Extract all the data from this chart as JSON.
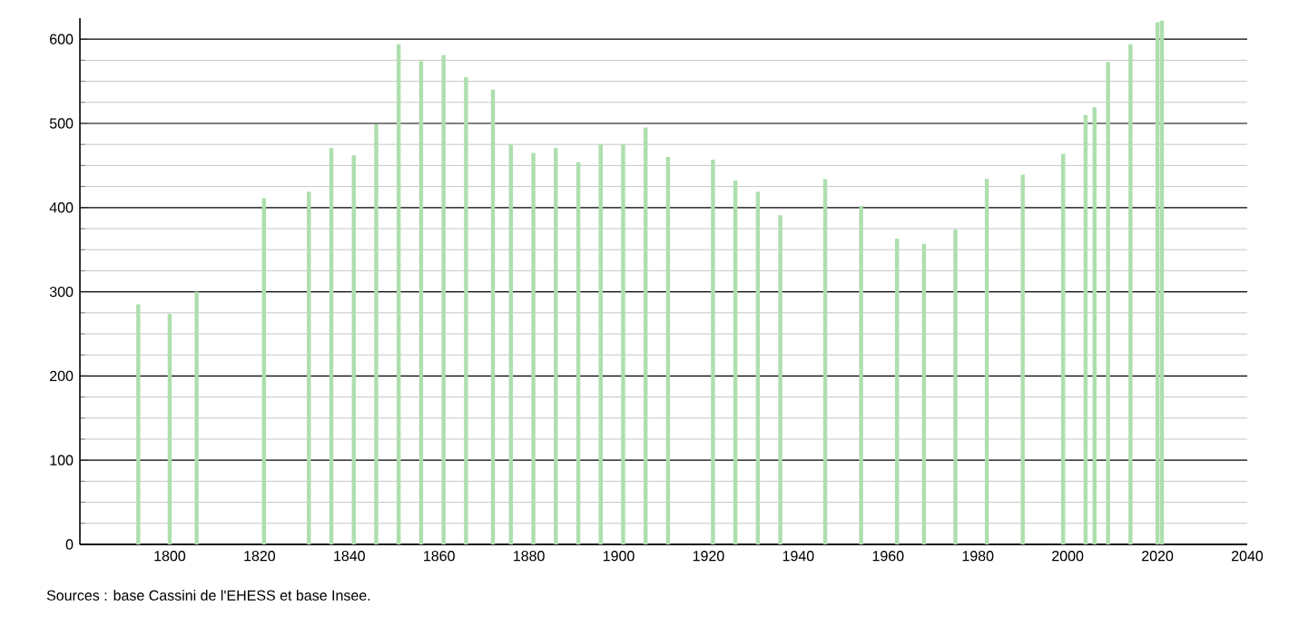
{
  "chart_data": {
    "type": "bar",
    "color": "#addfad",
    "x": [
      1793,
      1800,
      1806,
      1821,
      1831,
      1836,
      1841,
      1846,
      1851,
      1856,
      1861,
      1866,
      1872,
      1876,
      1881,
      1886,
      1891,
      1896,
      1901,
      1906,
      1911,
      1921,
      1926,
      1931,
      1936,
      1946,
      1954,
      1962,
      1968,
      1975,
      1982,
      1990,
      1999,
      2004,
      2006,
      2009,
      2014,
      2020,
      2021
    ],
    "values": [
      285,
      274,
      300,
      411,
      419,
      471,
      462,
      499,
      594,
      574,
      581,
      555,
      540,
      475,
      465,
      471,
      454,
      475,
      475,
      495,
      460,
      457,
      432,
      419,
      391,
      434,
      402,
      363,
      357,
      374,
      434,
      439,
      464,
      510,
      519,
      573,
      594,
      620,
      622
    ],
    "xlim": [
      1780,
      2040
    ],
    "xticks": [
      1800,
      1820,
      1840,
      1860,
      1880,
      1900,
      1920,
      1940,
      1960,
      1980,
      2000,
      2020,
      2040
    ],
    "ylim": [
      0,
      625
    ],
    "yticks": [
      0,
      100,
      200,
      300,
      400,
      500,
      600
    ],
    "grid": "y",
    "annotations": [
      "Sources : base Cassini de l'EHESS et base Insee."
    ]
  }
}
